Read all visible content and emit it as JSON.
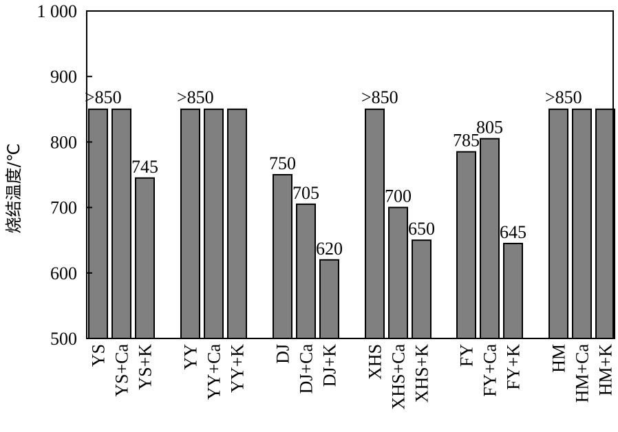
{
  "chart_data": {
    "type": "bar",
    "ylabel": "烧结温度/℃",
    "ylim": [
      500,
      1000
    ],
    "yticks": [
      500,
      600,
      700,
      800,
      900,
      1000
    ],
    "ytick_labels": [
      "500",
      "600",
      "700",
      "800",
      "900",
      "1 000"
    ],
    "grid": false,
    "bar_color": "#808080",
    "groups": [
      {
        "bars": [
          {
            "category": "YS",
            "value": 850
          },
          {
            "category": "YS+Ca",
            "value": 850
          },
          {
            "category": "YS+K",
            "value": 745,
            "label": "745"
          }
        ],
        "annotation": ">850"
      },
      {
        "bars": [
          {
            "category": "YY",
            "value": 850
          },
          {
            "category": "YY+Ca",
            "value": 850
          },
          {
            "category": "YY+K",
            "value": 850
          }
        ],
        "annotation": ">850"
      },
      {
        "bars": [
          {
            "category": "DJ",
            "value": 750,
            "label": "750"
          },
          {
            "category": "DJ+Ca",
            "value": 705,
            "label": "705"
          },
          {
            "category": "DJ+K",
            "value": 620,
            "label": "620"
          }
        ]
      },
      {
        "bars": [
          {
            "category": "XHS",
            "value": 850
          },
          {
            "category": "XHS+Ca",
            "value": 700,
            "label": "700"
          },
          {
            "category": "XHS+K",
            "value": 650,
            "label": "650"
          }
        ],
        "annotation": ">850"
      },
      {
        "bars": [
          {
            "category": "FY",
            "value": 785,
            "label": "785"
          },
          {
            "category": "FY+Ca",
            "value": 805,
            "label": "805"
          },
          {
            "category": "FY+K",
            "value": 645,
            "label": "645"
          }
        ]
      },
      {
        "bars": [
          {
            "category": "HM",
            "value": 850
          },
          {
            "category": "HM+Ca",
            "value": 850
          },
          {
            "category": "HM+K",
            "value": 850
          }
        ],
        "annotation": ">850"
      }
    ]
  }
}
